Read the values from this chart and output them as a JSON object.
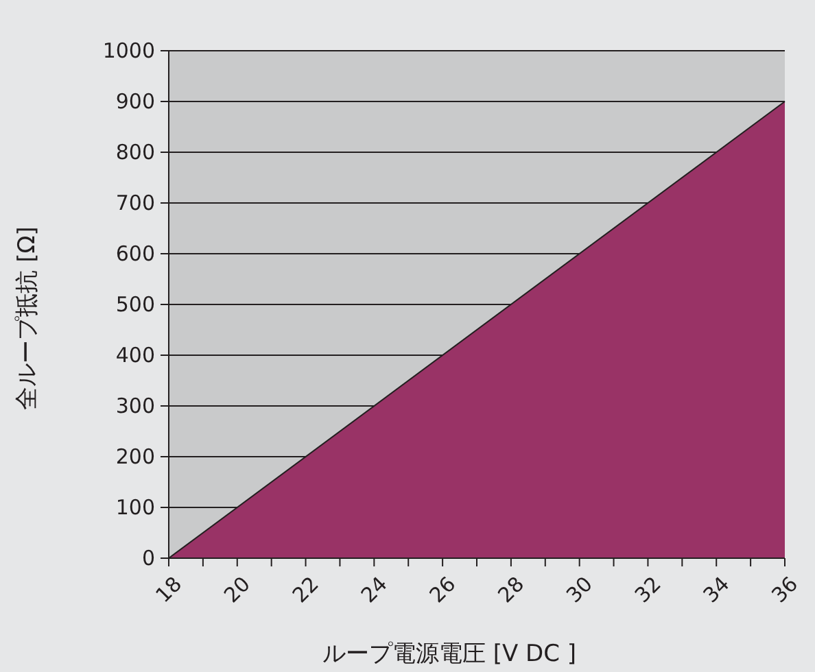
{
  "chart_data": {
    "type": "area",
    "x": [
      18,
      36
    ],
    "series": [
      {
        "color": "#993366",
        "values": [
          0,
          900
        ]
      }
    ],
    "xlabel": "ループ電源電圧 [V DC ]",
    "ylabel": "全ループ抵抗 [Ω]",
    "xlim": [
      18,
      36
    ],
    "xticks": [
      18,
      {
        "value": 19,
        "label": null
      },
      20,
      {
        "value": 21,
        "label": null
      },
      22,
      {
        "value": 23,
        "label": null
      },
      24,
      {
        "value": 25,
        "label": null
      },
      26,
      {
        "value": 27,
        "label": null
      },
      28,
      {
        "value": 29,
        "label": null
      },
      30,
      {
        "value": 31,
        "label": null
      },
      32,
      {
        "value": 33,
        "label": null
      },
      34,
      {
        "value": 35,
        "label": null
      },
      36
    ],
    "ylim": [
      0,
      1000
    ],
    "yticks": [
      0,
      100,
      200,
      300,
      400,
      500,
      600,
      700,
      800,
      900,
      1000
    ],
    "grid": "y"
  }
}
